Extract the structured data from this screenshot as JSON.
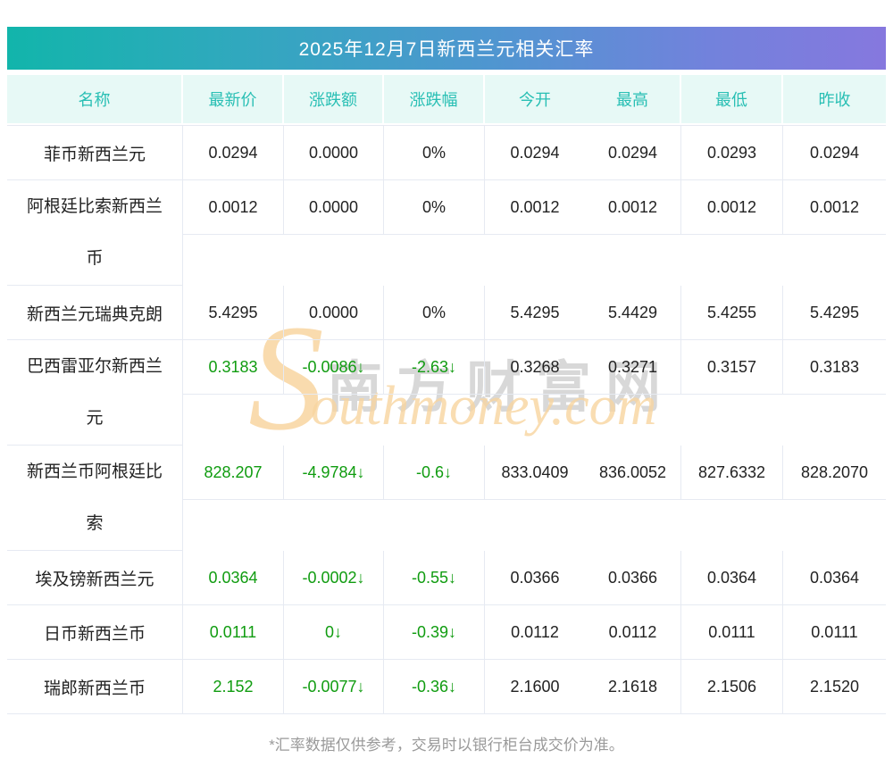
{
  "title": "2025年12月7日新西兰元相关汇率",
  "columns": [
    "名称",
    "最新价",
    "涨跌额",
    "涨跌幅",
    "今开",
    "最高",
    "最低",
    "昨收"
  ],
  "rows": [
    {
      "name": "菲币新西兰元",
      "two_line": false,
      "trend": "flat",
      "values": [
        "0.0294",
        "0.0000",
        "0%",
        "0.0294",
        "0.0294",
        "0.0293",
        "0.0294"
      ]
    },
    {
      "name": "阿根廷比索新西兰币",
      "two_line": true,
      "trend": "flat",
      "values": [
        "0.0012",
        "0.0000",
        "0%",
        "0.0012",
        "0.0012",
        "0.0012",
        "0.0012"
      ]
    },
    {
      "name": "新西兰元瑞典克朗",
      "two_line": false,
      "trend": "flat",
      "values": [
        "5.4295",
        "0.0000",
        "0%",
        "5.4295",
        "5.4429",
        "5.4255",
        "5.4295"
      ]
    },
    {
      "name": "巴西雷亚尔新西兰元",
      "two_line": true,
      "trend": "down",
      "values": [
        "0.3183",
        "-0.0086↓",
        "-2.63↓",
        "0.3268",
        "0.3271",
        "0.3157",
        "0.3183"
      ]
    },
    {
      "name": "新西兰币阿根廷比索",
      "two_line": true,
      "trend": "down",
      "values": [
        "828.207",
        "-4.9784↓",
        "-0.6↓",
        "833.0409",
        "836.0052",
        "827.6332",
        "828.2070"
      ]
    },
    {
      "name": "埃及镑新西兰元",
      "two_line": false,
      "trend": "down",
      "values": [
        "0.0364",
        "-0.0002↓",
        "-0.55↓",
        "0.0366",
        "0.0366",
        "0.0364",
        "0.0364"
      ]
    },
    {
      "name": "日币新西兰币",
      "two_line": false,
      "trend": "down",
      "values": [
        "0.0111",
        "0↓",
        "-0.39↓",
        "0.0112",
        "0.0112",
        "0.0111",
        "0.0111"
      ]
    },
    {
      "name": "瑞郎新西兰币",
      "two_line": false,
      "trend": "down",
      "values": [
        "2.152",
        "-0.0077↓",
        "-0.36↓",
        "2.1600",
        "2.1618",
        "2.1506",
        "2.1520"
      ]
    }
  ],
  "watermark": {
    "initial": "S",
    "tail": "outhmoney.com",
    "cn": "南方财富网"
  },
  "footnote": "*汇率数据仅供参考，交易时以银行柜台成交价为准。",
  "colors": {
    "up_down_green": "#109c10",
    "header_teal": "#28bfb4",
    "gradient_start": "#12b5ab",
    "gradient_end": "#8678de"
  }
}
